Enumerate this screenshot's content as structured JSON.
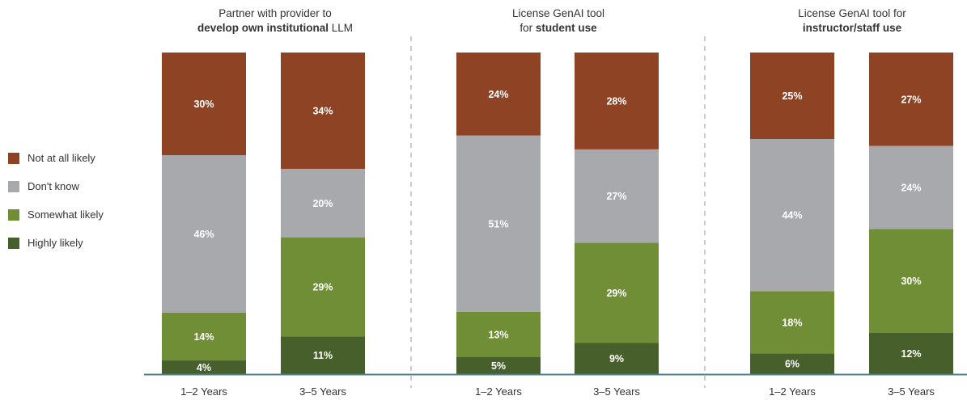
{
  "colors": {
    "not_at_all_likely": "#8f4325",
    "dont_know": "#a8a9ac",
    "somewhat_likely": "#6f8e36",
    "highly_likely": "#475f2a",
    "axis": "#4a7f8f",
    "divider": "#aaaaaa"
  },
  "legend": [
    {
      "label": "Not at all likely",
      "color": "#8f4325"
    },
    {
      "label": "Don't know",
      "color": "#a8a9ac"
    },
    {
      "label": "Somewhat likely",
      "color": "#6f8e36"
    },
    {
      "label": "Highly likely",
      "color": "#475f2a"
    }
  ],
  "panels": [
    {
      "title_line1": "Partner with provider to",
      "title_bold": "develop own institutional",
      "title_rest": " LLM"
    },
    {
      "title_line1": "License GenAI tool",
      "title_pre": "for ",
      "title_bold": "student use"
    },
    {
      "title_line1": "License GenAI tool for",
      "title_bold": "instructor/staff use"
    }
  ],
  "chart_data": {
    "type": "bar",
    "stacked": true,
    "series_order_bottom_to_top": [
      "Highly likely",
      "Somewhat likely",
      "Don't know",
      "Not at all likely"
    ],
    "panels": [
      {
        "title": "Partner with provider to develop own institutional LLM",
        "categories": [
          "1–2 Years",
          "3–5 Years"
        ],
        "series": [
          {
            "name": "Highly likely",
            "values": [
              4,
              11
            ]
          },
          {
            "name": "Somewhat likely",
            "values": [
              14,
              29
            ]
          },
          {
            "name": "Don't know",
            "values": [
              46,
              20
            ]
          },
          {
            "name": "Not at all likely",
            "values": [
              30,
              34
            ]
          }
        ]
      },
      {
        "title": "License GenAI tool for student use",
        "categories": [
          "1–2 Years",
          "3–5 Years"
        ],
        "series": [
          {
            "name": "Highly likely",
            "values": [
              5,
              9
            ]
          },
          {
            "name": "Somewhat likely",
            "values": [
              13,
              29
            ]
          },
          {
            "name": "Don't know",
            "values": [
              51,
              27
            ]
          },
          {
            "name": "Not at all likely",
            "values": [
              24,
              28
            ]
          }
        ]
      },
      {
        "title": "License GenAI tool for instructor/staff use",
        "categories": [
          "1–2 Years",
          "3–5 Years"
        ],
        "series": [
          {
            "name": "Highly likely",
            "values": [
              6,
              12
            ]
          },
          {
            "name": "Somewhat likely",
            "values": [
              18,
              30
            ]
          },
          {
            "name": "Don't know",
            "values": [
              44,
              24
            ]
          },
          {
            "name": "Not at all likely",
            "values": [
              25,
              27
            ]
          }
        ]
      }
    ],
    "value_suffix": "%"
  }
}
